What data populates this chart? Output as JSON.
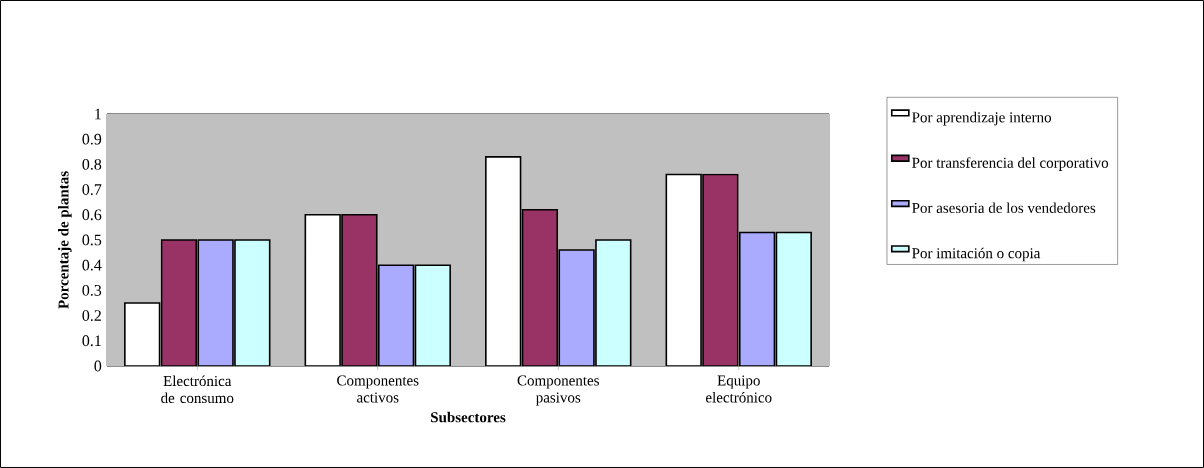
{
  "chart_data": {
    "type": "bar",
    "xlabel": "Subsectores",
    "ylabel": "Porcentaje de plantas",
    "categories": [
      "Electrónica de consumo",
      "Componentes activos",
      "Componentes pasivos",
      "Equipo electrónico"
    ],
    "series": [
      {
        "name": "Por aprendizaje interno",
        "color": "#ffffff",
        "values": [
          0.25,
          0.6,
          0.83,
          0.76
        ]
      },
      {
        "name": "Por transferencia  del corporativo",
        "color": "#993366",
        "values": [
          0.5,
          0.6,
          0.62,
          0.76
        ]
      },
      {
        "name": "Por asesoria de los vendedores",
        "color": "#aaaaff",
        "values": [
          0.5,
          0.4,
          0.46,
          0.53
        ]
      },
      {
        "name": "Por imitación o copia",
        "color": "#ccffff",
        "values": [
          0.5,
          0.4,
          0.5,
          0.53
        ]
      }
    ],
    "ylim": [
      0,
      1
    ],
    "yticks": [
      0,
      0.1,
      0.2,
      0.3,
      0.4,
      0.5,
      0.6,
      0.7,
      0.8,
      0.9,
      1
    ],
    "grid": "y",
    "legend": "right"
  }
}
